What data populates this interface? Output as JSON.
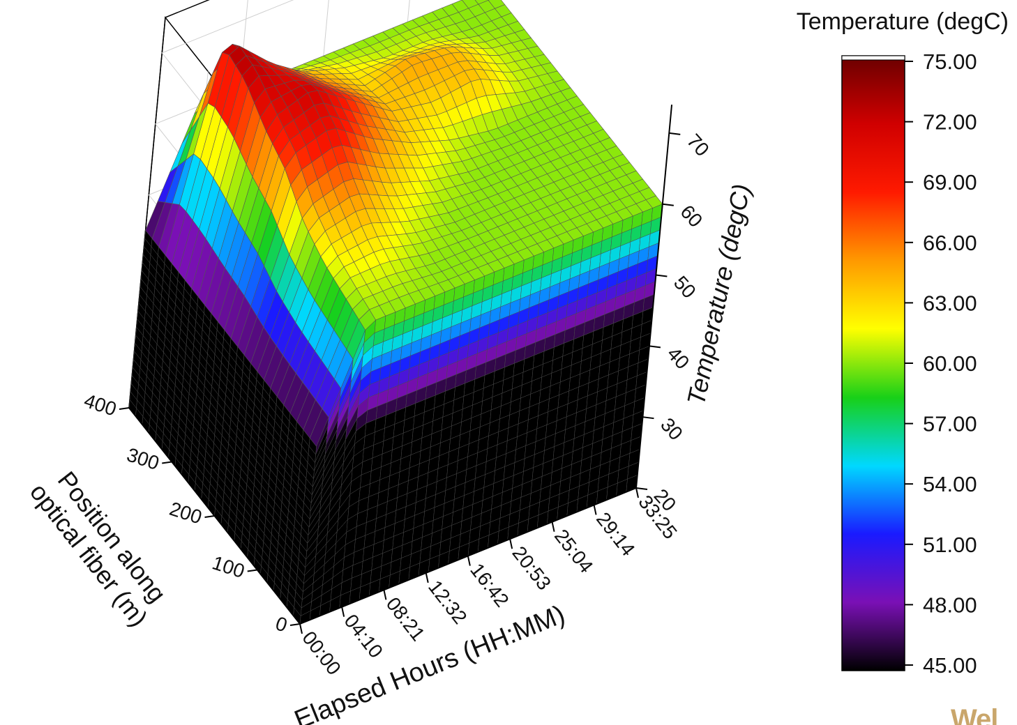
{
  "chart_data": {
    "type": "surface3d",
    "title": "",
    "xlabel": "Elapsed Hours (HH:MM)",
    "ylabel": "Position along optical fiber (m)",
    "zlabel": "Temperature (degC)",
    "x_ticks": [
      "00:00",
      "04:10",
      "08:21",
      "12:32",
      "16:42",
      "20:53",
      "25:04",
      "29:14",
      "33:25"
    ],
    "y_ticks": [
      0,
      100,
      200,
      300,
      400
    ],
    "z_ticks": [
      20,
      30,
      40,
      50,
      60,
      70
    ],
    "zlim": [
      20,
      75
    ],
    "x": [
      0,
      4.17,
      8.35,
      12.53,
      16.7,
      20.88,
      25.07,
      29.23,
      33.42
    ],
    "y": [
      0,
      50,
      100,
      150,
      200,
      250,
      300,
      350,
      400
    ],
    "z": [
      [
        45,
        60,
        60,
        60,
        60,
        60,
        60,
        60,
        60
      ],
      [
        45,
        61,
        61,
        60,
        60,
        60,
        60,
        60,
        60
      ],
      [
        45,
        62,
        63,
        61,
        60,
        60,
        60,
        60,
        60
      ],
      [
        45,
        64,
        66,
        63,
        61,
        60,
        60,
        60,
        60
      ],
      [
        45,
        68,
        70,
        66,
        63,
        61,
        60,
        60,
        60
      ],
      [
        45,
        70,
        72,
        68,
        64,
        63,
        64,
        61,
        60
      ],
      [
        45,
        73,
        70,
        66,
        63,
        65,
        64,
        61,
        60
      ],
      [
        45,
        74,
        68,
        64,
        62,
        61,
        61,
        60,
        60
      ],
      [
        45,
        60,
        60,
        60,
        60,
        60,
        60,
        60,
        60
      ]
    ],
    "colorbar": {
      "title": "Temperature (degC)",
      "ticks": [
        "75.00",
        "72.00",
        "69.00",
        "66.00",
        "63.00",
        "60.00",
        "57.00",
        "54.00",
        "51.00",
        "48.00",
        "45.00"
      ],
      "range": [
        45,
        75
      ],
      "colors": [
        "#000000",
        "#7a10b5",
        "#1a1aff",
        "#00d8ff",
        "#18d018",
        "#ffff00",
        "#ff9900",
        "#ff1a00",
        "#d00000",
        "#6a0000"
      ]
    },
    "grid": true,
    "legend": "right"
  },
  "watermark": "Wel"
}
